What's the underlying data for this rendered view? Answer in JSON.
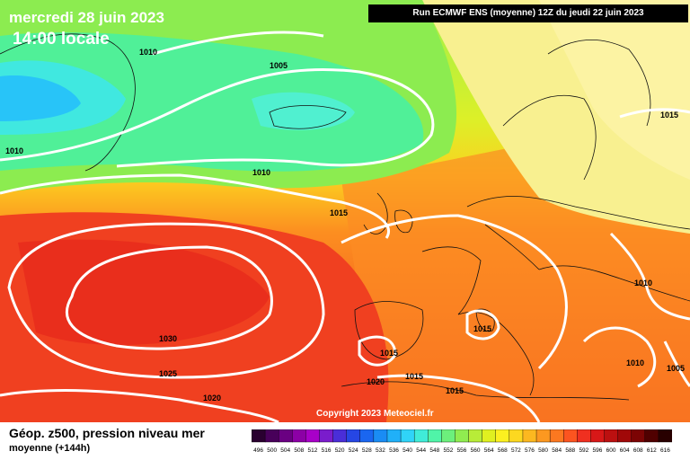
{
  "header": {
    "date_line": "mercredi 28 juin 2023",
    "time_line": "14:00 locale",
    "run_info": "Run ECMWF ENS (moyenne) 12Z du jeudi 22 juin 2023"
  },
  "map": {
    "copyright": "Copyright 2023 Meteociel.fr",
    "isobar_labels": [
      "1010",
      "1005",
      "1015",
      "1010",
      "1015",
      "1010",
      "1030",
      "1025",
      "1020",
      "1015",
      "1015",
      "1015",
      "1015",
      "1010",
      "1005",
      "1020",
      "1010"
    ],
    "colors": {
      "isobar": "#ffffff",
      "coastline": "#111111"
    }
  },
  "footer": {
    "title": "Géop. z500, pression niveau mer",
    "subtitle": "moyenne   (+144h)"
  },
  "scale": {
    "values": [
      "496",
      "500",
      "504",
      "508",
      "512",
      "516",
      "520",
      "524",
      "528",
      "532",
      "536",
      "540",
      "544",
      "548",
      "552",
      "556",
      "560",
      "564",
      "568",
      "572",
      "576",
      "580",
      "584",
      "588",
      "592",
      "596",
      "600",
      "604",
      "608",
      "612",
      "616"
    ],
    "colors": [
      "#2a0030",
      "#48005a",
      "#6a0082",
      "#8c00a6",
      "#a800c8",
      "#7a1ccc",
      "#4a2ed8",
      "#2646e4",
      "#1a66f0",
      "#1a8cf4",
      "#20b0f8",
      "#30d4f8",
      "#40ecd8",
      "#50f4a8",
      "#6cf07c",
      "#90ec50",
      "#b8ec38",
      "#e0f020",
      "#fcf020",
      "#fcd820",
      "#fcb820",
      "#fc9820",
      "#fc7820",
      "#fc5420",
      "#f03020",
      "#d81818",
      "#bc1010",
      "#a00808",
      "#7c0404",
      "#500000",
      "#280000"
    ]
  }
}
